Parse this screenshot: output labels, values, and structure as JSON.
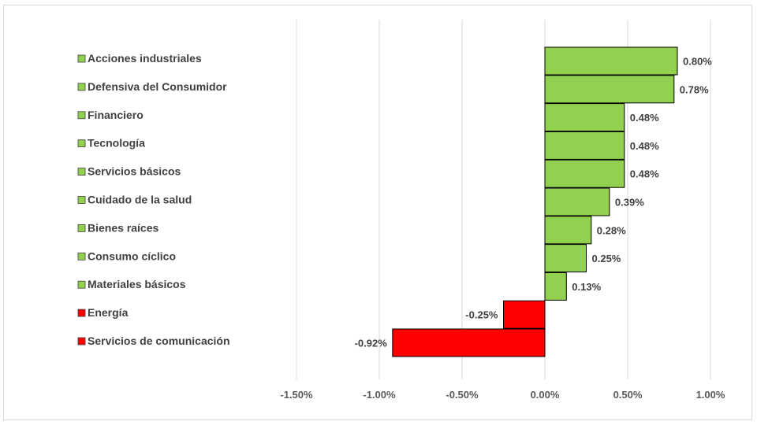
{
  "chart_data": {
    "type": "bar",
    "orientation": "horizontal",
    "categories": [
      "Acciones industriales",
      "Defensiva del Consumidor",
      "Financiero",
      "Tecnología",
      "Servicios básicos",
      "Cuidado de la salud",
      "Bienes raíces",
      "Consumo cíclico",
      "Materiales básicos",
      "Energía",
      "Servicios de comunicación"
    ],
    "values": [
      0.8,
      0.78,
      0.48,
      0.48,
      0.48,
      0.39,
      0.28,
      0.25,
      0.13,
      -0.25,
      -0.92
    ],
    "value_labels": [
      "0.80%",
      "0.78%",
      "0.48%",
      "0.48%",
      "0.48%",
      "0.39%",
      "0.28%",
      "0.25%",
      "0.13%",
      "-0.25%",
      "-0.92%"
    ],
    "x_ticks": [
      -1.5,
      -1.0,
      -0.5,
      0.0,
      0.5,
      1.0
    ],
    "x_tick_labels": [
      "-1.50%",
      "-1.00%",
      "-0.50%",
      "0.00%",
      "0.50%",
      "1.00%"
    ],
    "xlim": [
      -1.5,
      1.0
    ],
    "title": "",
    "xlabel": "",
    "ylabel": "",
    "grid": "vertical",
    "legend": "left",
    "colors": {
      "positive": "#92d050",
      "negative": "#ff0000",
      "grid": "#d9d9d9",
      "text": "#404040"
    }
  }
}
